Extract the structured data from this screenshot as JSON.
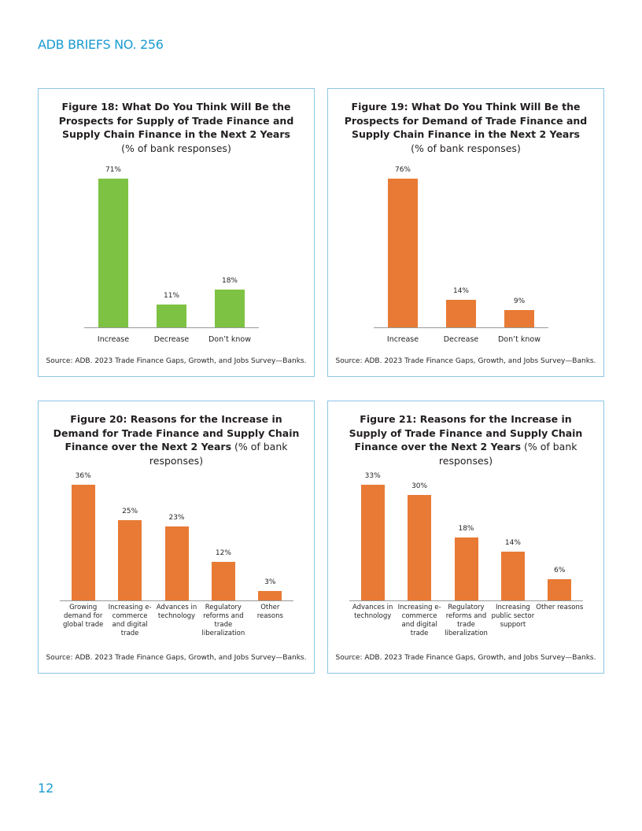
{
  "header": "ADB BRIEFS NO. 256",
  "page_number": "12",
  "chart_data": [
    {
      "type": "bar",
      "title": "Figure 18: What Do You Think Will Be the Prospects for Supply of Trade Finance and Supply Chain Finance in the Next 2 Years",
      "subtitle": "(% of bank responses)",
      "categories": [
        "Increase",
        "Decrease",
        "Don’t know"
      ],
      "values": [
        71,
        11,
        18
      ],
      "value_labels": [
        "71%",
        "11%",
        "18%"
      ],
      "color": "#7dc242",
      "source": "Source: ADB. 2023 Trade Finance Gaps, Growth, and Jobs Survey—Banks."
    },
    {
      "type": "bar",
      "title": "Figure 19: What Do You Think Will Be the Prospects for Demand of Trade Finance and Supply Chain Finance in the Next 2 Years",
      "subtitle": "(% of bank responses)",
      "categories": [
        "Increase",
        "Decrease",
        "Don’t know"
      ],
      "values": [
        76,
        14,
        9
      ],
      "value_labels": [
        "76%",
        "14%",
        "9%"
      ],
      "color": "#e87a35",
      "source": "Source: ADB. 2023 Trade Finance Gaps, Growth, and Jobs Survey—Banks."
    },
    {
      "type": "bar",
      "title": "Figure 20: Reasons for the Increase in Demand for Trade Finance and Supply Chain Finance over the Next 2 Years",
      "subtitle": "(% of bank responses)",
      "categories": [
        "Growing demand for global trade",
        "Increasing e-commerce and digital trade",
        "Advances in technology",
        "Regulatory reforms and trade liberalization",
        "Other reasons"
      ],
      "values": [
        36,
        25,
        23,
        12,
        3
      ],
      "value_labels": [
        "36%",
        "25%",
        "23%",
        "12%",
        "3%"
      ],
      "color": "#e87a35",
      "source": "Source: ADB. 2023 Trade Finance Gaps, Growth, and Jobs Survey—Banks."
    },
    {
      "type": "bar",
      "title": "Figure 21: Reasons for the Increase in Supply of Trade Finance and Supply Chain Finance over the Next 2 Years",
      "subtitle": "(% of bank responses)",
      "categories": [
        "Advances in technology",
        "Increasing e-commerce and digital trade",
        "Regulatory reforms and trade liberalization",
        "Increasing public sector support",
        "Other reasons"
      ],
      "values": [
        33,
        30,
        18,
        14,
        6
      ],
      "value_labels": [
        "33%",
        "30%",
        "18%",
        "14%",
        "6%"
      ],
      "color": "#e87a35",
      "source": "Source: ADB. 2023 Trade Finance Gaps, Growth, and Jobs Survey—Banks."
    }
  ]
}
